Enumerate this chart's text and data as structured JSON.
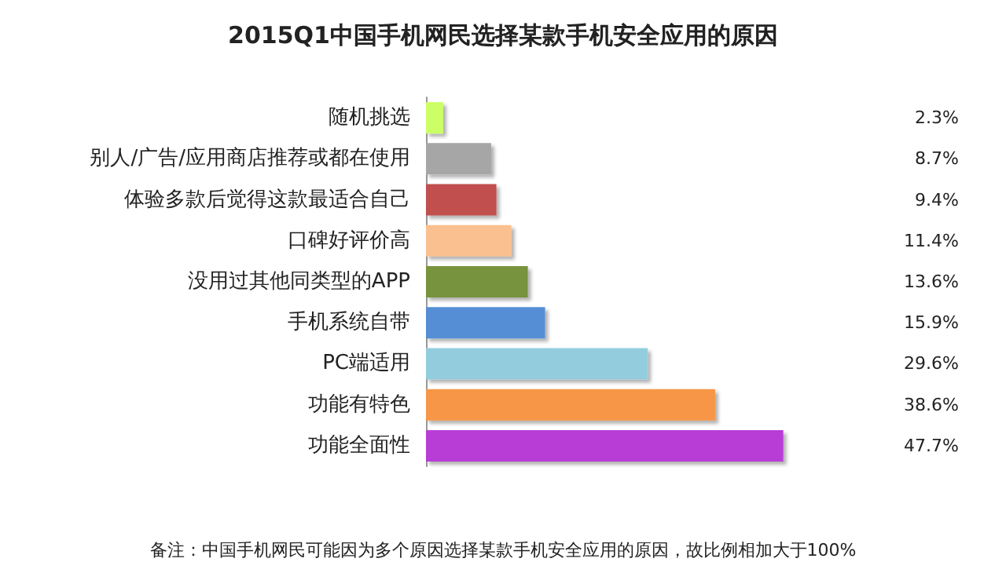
{
  "chart_data": {
    "type": "bar",
    "orientation": "horizontal",
    "title": "2015Q1中国手机网民选择某款手机安全应用的原因",
    "categories": [
      "随机挑选",
      "别人/广告/应用商店推荐或都在使用",
      "体验多款后觉得这款最适合自己",
      "口碑好评价高",
      "没用过其他同类型的APP",
      "手机系统自带",
      "PC端适用",
      "功能有特色",
      "功能全面性"
    ],
    "values": [
      2.3,
      8.7,
      9.4,
      11.4,
      13.6,
      15.9,
      29.6,
      38.6,
      47.7
    ],
    "colors": [
      "#ccff66",
      "#a6a6a6",
      "#c0504d",
      "#fac090",
      "#77933c",
      "#558ed5",
      "#93cddd",
      "#f79646",
      "#b83dd6"
    ],
    "value_labels": [
      "2.3%",
      "8.7%",
      "9.4%",
      "11.4%",
      "13.6%",
      "15.9%",
      "29.6%",
      "38.6%",
      "47.7%"
    ],
    "annotations": [
      "备注：中国手机网民可能因为多个原因选择某款手机安全应用的原因，故比例相加大于100%"
    ],
    "grid": false
  }
}
